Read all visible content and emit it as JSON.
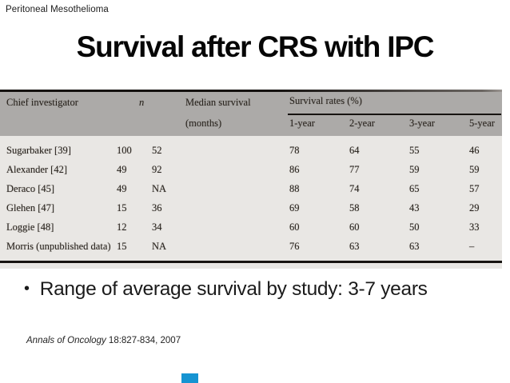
{
  "slide": {
    "header_label": "Peritoneal Mesothelioma",
    "title": "Survival after CRS with IPC",
    "bullet_glyph": "•",
    "bullet": "Range of average survival by study: 3-7 years",
    "citation_journal": "Annals of Oncology",
    "citation_rest": " 18:827-834, 2007",
    "accent_color": "#1694d2"
  },
  "table": {
    "headers": {
      "investigator": "Chief investigator",
      "n": "n",
      "median_line1": "Median survival",
      "median_line2": "(months)",
      "group": "Survival rates (%)",
      "y1": "1-year",
      "y2": "2-year",
      "y3": "3-year",
      "y5": "5-year"
    },
    "rows": [
      {
        "investigator": "Sugarbaker [39]",
        "n": "100",
        "median": "52",
        "y1": "78",
        "y2": "64",
        "y3": "55",
        "y5": "46"
      },
      {
        "investigator": "Alexander [42]",
        "n": "49",
        "median": "92",
        "y1": "86",
        "y2": "77",
        "y3": "59",
        "y5": "59"
      },
      {
        "investigator": "Deraco [45]",
        "n": "49",
        "median": "NA",
        "y1": "88",
        "y2": "74",
        "y3": "65",
        "y5": "57"
      },
      {
        "investigator": "Glehen [47]",
        "n": "15",
        "median": "36",
        "y1": "69",
        "y2": "58",
        "y3": "43",
        "y5": "29"
      },
      {
        "investigator": "Loggie [48]",
        "n": "12",
        "median": "34",
        "y1": "60",
        "y2": "60",
        "y3": "50",
        "y5": "33"
      },
      {
        "investigator": "Morris (unpublished data)",
        "n": "15",
        "median": "NA",
        "y1": "76",
        "y2": "63",
        "y3": "63",
        "y5": "–"
      }
    ]
  }
}
